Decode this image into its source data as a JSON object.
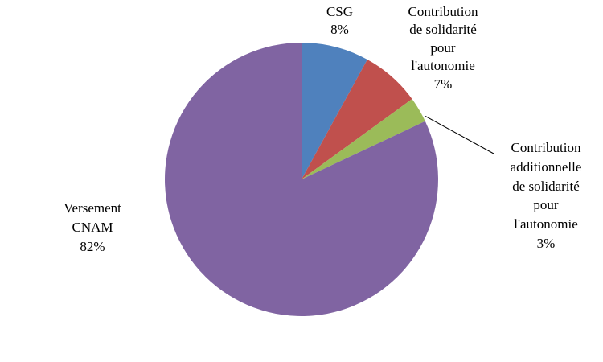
{
  "chart_data": {
    "type": "pie",
    "title": "",
    "legend": "none",
    "direction": "clockwise",
    "start_angle_deg": 0,
    "data_label_format": "category name + percent",
    "slices": [
      {
        "label": "CSG",
        "value": 8,
        "color": "#4F81BD"
      },
      {
        "label": "Contribution de solidarité pour l'autonomie",
        "value": 7,
        "color": "#C0504D"
      },
      {
        "label": "Contribution additionnelle de solidarité pour l'autonomie",
        "value": 3,
        "color": "#9BBB59"
      },
      {
        "label": "Versement CNAM",
        "value": 82,
        "color": "#8064A2"
      }
    ]
  },
  "labels": {
    "csg": "CSG\n8%",
    "solidarite": "Contribution\nde solidarité\npour\nl'autonomie\n7%",
    "additionnelle": "Contribution\nadditionnelle\nde solidarité\npour\nl'autonomie\n3%",
    "versement": "Versement\nCNAM\n82%"
  },
  "leader_line_color": "#000000"
}
